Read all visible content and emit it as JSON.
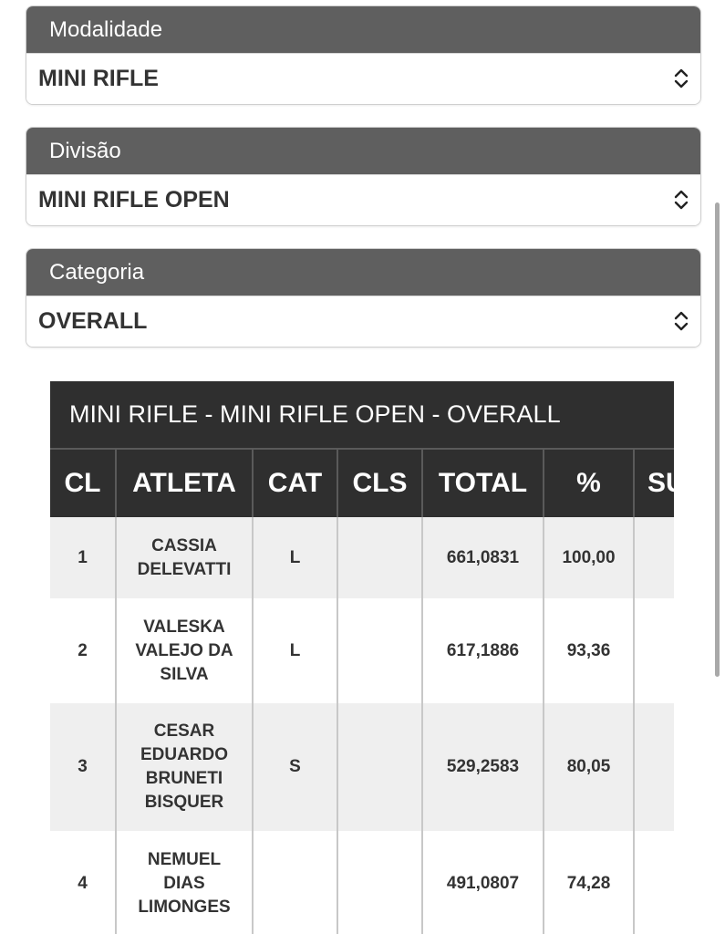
{
  "filters": [
    {
      "label": "Modalidade",
      "value": "MINI RIFLE"
    },
    {
      "label": "Divisão",
      "value": "MINI RIFLE OPEN"
    },
    {
      "label": "Categoria",
      "value": "OVERALL"
    }
  ],
  "results": {
    "title": "MINI RIFLE - MINI RIFLE OPEN - OVERALL",
    "columns": [
      "CL",
      "ATLETA",
      "CAT",
      "CLS",
      "TOTAL",
      "%",
      "SU"
    ],
    "rows": [
      {
        "cl": "1",
        "atleta_lines": [
          "CASSIA",
          "DELEVATTI"
        ],
        "cat": "L",
        "cls": "",
        "total": "661,0831",
        "pct": "100,00"
      },
      {
        "cl": "2",
        "atleta_lines": [
          "VALESKA",
          "VALEJO DA",
          "SILVA"
        ],
        "cat": "L",
        "cls": "",
        "total": "617,1886",
        "pct": "93,36"
      },
      {
        "cl": "3",
        "atleta_lines": [
          "CESAR",
          "EDUARDO",
          "BRUNETI",
          "BISQUER"
        ],
        "cat": "S",
        "cls": "",
        "total": "529,2583",
        "pct": "80,05"
      },
      {
        "cl": "4",
        "atleta_lines": [
          "NEMUEL",
          "DIAS",
          "LIMONGES"
        ],
        "cat": "",
        "cls": "",
        "total": "491,0807",
        "pct": "74,28"
      }
    ]
  },
  "icons": {
    "select": "chevron-up-down-icon"
  }
}
